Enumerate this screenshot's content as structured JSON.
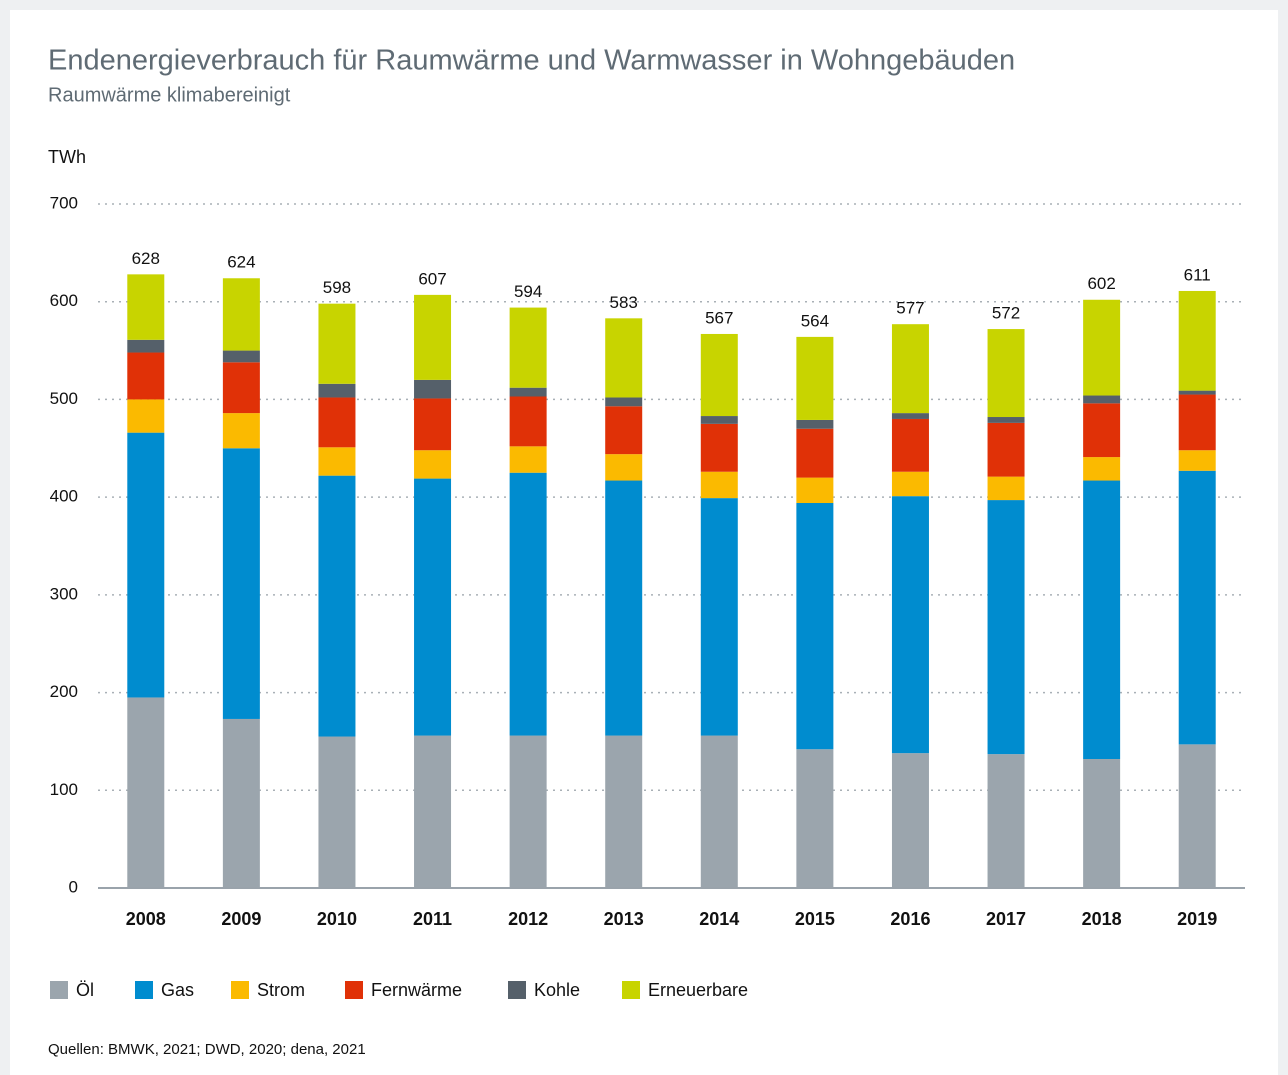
{
  "chart_data": {
    "type": "stacked_bar",
    "title": "Endenergieverbrauch für Raumwärme und Warmwasser in Wohngebäuden",
    "subtitle": "Raumwärme klimabereinigt",
    "y_label": "TWh",
    "categories": [
      "2008",
      "2009",
      "2010",
      "2011",
      "2012",
      "2013",
      "2014",
      "2015",
      "2016",
      "2017",
      "2018",
      "2019"
    ],
    "series": [
      {
        "name": "Öl",
        "color": "#9ba5ad",
        "values": [
          195,
          173,
          155,
          156,
          156,
          156,
          156,
          142,
          138,
          137,
          132,
          147
        ]
      },
      {
        "name": "Gas",
        "color": "#008ccf",
        "values": [
          271,
          277,
          267,
          263,
          269,
          261,
          243,
          252,
          263,
          260,
          285,
          280
        ]
      },
      {
        "name": "Strom",
        "color": "#fbba00",
        "values": [
          34,
          36,
          29,
          29,
          27,
          27,
          27,
          26,
          25,
          24,
          24,
          21
        ]
      },
      {
        "name": "Fernwärme",
        "color": "#e03107",
        "values": [
          48,
          52,
          51,
          53,
          51,
          49,
          49,
          50,
          54,
          55,
          55,
          57
        ]
      },
      {
        "name": "Kohle",
        "color": "#55606a",
        "values": [
          13,
          12,
          14,
          19,
          9,
          9,
          8,
          9,
          6,
          6,
          8,
          4
        ]
      },
      {
        "name": "Erneuerbare",
        "color": "#c8d400",
        "values": [
          67,
          74,
          82,
          87,
          82,
          81,
          84,
          85,
          91,
          90,
          98,
          102
        ]
      }
    ],
    "totals": [
      628,
      624,
      598,
      607,
      594,
      583,
      567,
      564,
      577,
      572,
      602,
      611
    ],
    "ylim": [
      0,
      700
    ],
    "yticks": [
      0,
      100,
      200,
      300,
      400,
      500,
      600,
      700
    ],
    "grid": true,
    "source": "Quellen: BMWK, 2021; DWD, 2020; dena, 2021"
  }
}
